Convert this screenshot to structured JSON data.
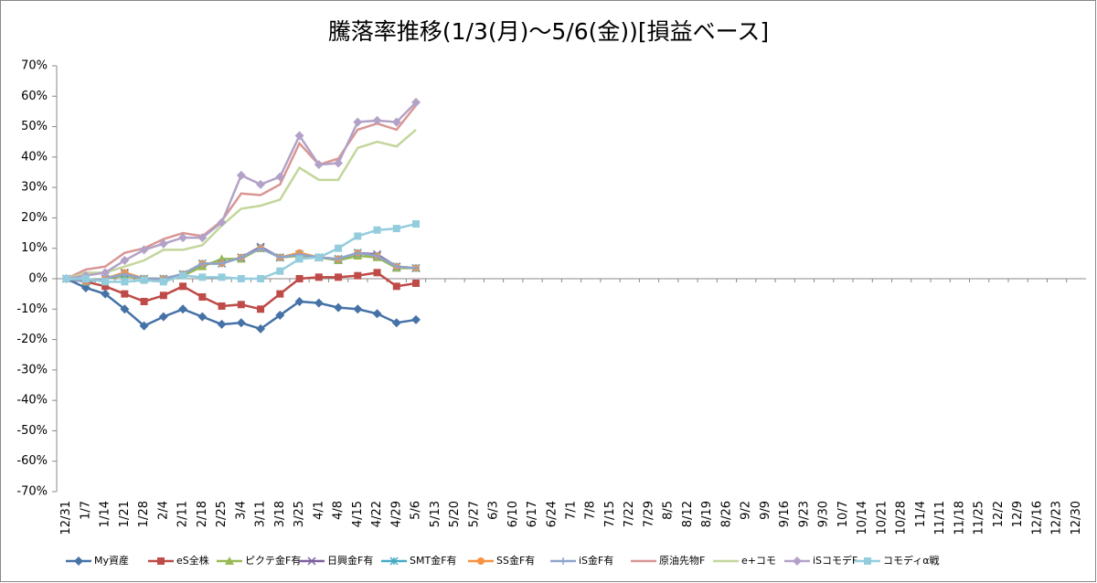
{
  "chart_data": {
    "type": "line",
    "title": "騰落率推移(1/3(月)～5/6(金))[損益ベース]",
    "categories": [
      "12/31",
      "1/7",
      "1/14",
      "1/21",
      "1/28",
      "2/4",
      "2/11",
      "2/18",
      "2/25",
      "3/4",
      "3/11",
      "3/18",
      "3/25",
      "4/1",
      "4/8",
      "4/15",
      "4/22",
      "4/29",
      "5/6",
      "5/13",
      "5/20",
      "5/27",
      "6/3",
      "6/10",
      "6/17",
      "6/24",
      "7/1",
      "7/8",
      "7/15",
      "7/22",
      "7/29",
      "8/5",
      "8/12",
      "8/19",
      "8/26",
      "9/2",
      "9/9",
      "9/16",
      "9/23",
      "9/30",
      "10/7",
      "10/14",
      "10/21",
      "10/28",
      "11/4",
      "11/11",
      "11/18",
      "11/25",
      "12/2",
      "12/9",
      "12/16",
      "12/23",
      "12/30"
    ],
    "ylim": [
      -70,
      70
    ],
    "yticks": [
      {
        "value": -70,
        "label": "-70%"
      },
      {
        "value": -60,
        "label": "-60%"
      },
      {
        "value": -50,
        "label": "-50%"
      },
      {
        "value": -40,
        "label": "-40%"
      },
      {
        "value": -30,
        "label": "-30%"
      },
      {
        "value": -20,
        "label": "-20%"
      },
      {
        "value": -10,
        "label": "-10%"
      },
      {
        "value": 0,
        "label": "0%"
      },
      {
        "value": 10,
        "label": "10%"
      },
      {
        "value": 20,
        "label": "20%"
      },
      {
        "value": 30,
        "label": "30%"
      },
      {
        "value": 40,
        "label": "40%"
      },
      {
        "value": 50,
        "label": "50%"
      },
      {
        "value": 60,
        "label": "60%"
      },
      {
        "value": 70,
        "label": "70%"
      }
    ],
    "grid": false,
    "legend": "bottom",
    "series": [
      {
        "name": "My資産",
        "color": "#4572a7",
        "marker": "diamond",
        "values": [
          0,
          -3,
          -5,
          -10,
          -15.5,
          -12.5,
          -10,
          -12.5,
          -15,
          -14.5,
          -16.5,
          -12,
          -7.5,
          -8,
          -9.5,
          -10,
          -11.5,
          -14.5,
          -13.5,
          null,
          null,
          null,
          null,
          null,
          null,
          null,
          null,
          null,
          null,
          null,
          null,
          null,
          null,
          null,
          null,
          null,
          null,
          null,
          null,
          null,
          null,
          null,
          null,
          null,
          null,
          null,
          null,
          null,
          null,
          null,
          null,
          null,
          null
        ]
      },
      {
        "name": "eS全株",
        "color": "#be4b48",
        "marker": "square",
        "values": [
          0,
          -1,
          -2.5,
          -5,
          -7.5,
          -5.5,
          -2.5,
          -6,
          -9,
          -8.5,
          -10,
          -5,
          0,
          0.5,
          0.5,
          1,
          2,
          -2.5,
          -1.5,
          null,
          null,
          null,
          null,
          null,
          null,
          null,
          null,
          null,
          null,
          null,
          null,
          null,
          null,
          null,
          null,
          null,
          null,
          null,
          null,
          null,
          null,
          null,
          null,
          null,
          null,
          null,
          null,
          null,
          null,
          null,
          null,
          null,
          null
        ]
      },
      {
        "name": "ピクテ金F有",
        "color": "#98b954",
        "marker": "triangle",
        "values": [
          0,
          -1,
          0,
          1,
          0,
          0,
          1,
          4,
          6.5,
          6.5,
          10,
          7,
          7.5,
          7,
          6,
          7.5,
          7,
          3.5,
          3.5,
          null,
          null,
          null,
          null,
          null,
          null,
          null,
          null,
          null,
          null,
          null,
          null,
          null,
          null,
          null,
          null,
          null,
          null,
          null,
          null,
          null,
          null,
          null,
          null,
          null,
          null,
          null,
          null,
          null,
          null,
          null,
          null,
          null,
          null
        ]
      },
      {
        "name": "日興金F有",
        "color": "#7d5fa0",
        "marker": "x",
        "values": [
          0,
          -1,
          0,
          2,
          0,
          0,
          1.5,
          5,
          5,
          7,
          10.5,
          7,
          8,
          7,
          6.5,
          8.5,
          8,
          4,
          3.5,
          null,
          null,
          null,
          null,
          null,
          null,
          null,
          null,
          null,
          null,
          null,
          null,
          null,
          null,
          null,
          null,
          null,
          null,
          null,
          null,
          null,
          null,
          null,
          null,
          null,
          null,
          null,
          null,
          null,
          null,
          null,
          null,
          null,
          null
        ]
      },
      {
        "name": "SMT金F有",
        "color": "#46aac5",
        "marker": "star",
        "values": [
          0,
          -1,
          0,
          1.5,
          0,
          0,
          1.5,
          5,
          5,
          7,
          10,
          7,
          8,
          7,
          6.5,
          8.5,
          7.5,
          4,
          3.5,
          null,
          null,
          null,
          null,
          null,
          null,
          null,
          null,
          null,
          null,
          null,
          null,
          null,
          null,
          null,
          null,
          null,
          null,
          null,
          null,
          null,
          null,
          null,
          null,
          null,
          null,
          null,
          null,
          null,
          null,
          null,
          null,
          null,
          null
        ]
      },
      {
        "name": "SS金F有",
        "color": "#f69240",
        "marker": "circle",
        "values": [
          0,
          -1,
          0,
          2,
          0,
          0,
          1.5,
          5,
          5,
          7,
          10,
          7,
          8.5,
          7,
          6.5,
          8.5,
          7.5,
          4,
          3.5,
          null,
          null,
          null,
          null,
          null,
          null,
          null,
          null,
          null,
          null,
          null,
          null,
          null,
          null,
          null,
          null,
          null,
          null,
          null,
          null,
          null,
          null,
          null,
          null,
          null,
          null,
          null,
          null,
          null,
          null,
          null,
          null,
          null,
          null
        ]
      },
      {
        "name": "iS金F有",
        "color": "#8ea5cb",
        "marker": "plus",
        "values": [
          0,
          -1,
          0,
          1.5,
          0,
          0,
          1.5,
          5,
          5,
          7,
          10,
          7,
          8,
          7,
          6.5,
          8.5,
          7.5,
          4,
          3.5,
          null,
          null,
          null,
          null,
          null,
          null,
          null,
          null,
          null,
          null,
          null,
          null,
          null,
          null,
          null,
          null,
          null,
          null,
          null,
          null,
          null,
          null,
          null,
          null,
          null,
          null,
          null,
          null,
          null,
          null,
          null,
          null,
          null,
          null
        ]
      },
      {
        "name": "原油先物F",
        "color": "#d99694",
        "marker": "none",
        "values": [
          0,
          3,
          4,
          8.5,
          10,
          13,
          15,
          14,
          19,
          28,
          27.5,
          31,
          44.5,
          37.5,
          39.5,
          49,
          51,
          49,
          57,
          null,
          null,
          null,
          null,
          null,
          null,
          null,
          null,
          null,
          null,
          null,
          null,
          null,
          null,
          null,
          null,
          null,
          null,
          null,
          null,
          null,
          null,
          null,
          null,
          null,
          null,
          null,
          null,
          null,
          null,
          null,
          null,
          null,
          null
        ]
      },
      {
        "name": "e+コモ",
        "color": "#c3d69b",
        "marker": "none",
        "values": [
          0,
          2,
          2,
          4,
          6,
          9.5,
          9.5,
          11,
          17.5,
          23,
          24,
          26,
          36.5,
          32.5,
          32.5,
          43,
          45,
          43.5,
          49,
          null,
          null,
          null,
          null,
          null,
          null,
          null,
          null,
          null,
          null,
          null,
          null,
          null,
          null,
          null,
          null,
          null,
          null,
          null,
          null,
          null,
          null,
          null,
          null,
          null,
          null,
          null,
          null,
          null,
          null,
          null,
          null,
          null,
          null
        ]
      },
      {
        "name": "iSコモデF",
        "color": "#b3a2c7",
        "marker": "diamond",
        "values": [
          0,
          1,
          2,
          6,
          9.5,
          11.5,
          13.5,
          13.5,
          18.5,
          34,
          31,
          33.5,
          47,
          37.5,
          38,
          51.5,
          52,
          51.5,
          58,
          null,
          null,
          null,
          null,
          null,
          null,
          null,
          null,
          null,
          null,
          null,
          null,
          null,
          null,
          null,
          null,
          null,
          null,
          null,
          null,
          null,
          null,
          null,
          null,
          null,
          null,
          null,
          null,
          null,
          null,
          null,
          null,
          null,
          null
        ]
      },
      {
        "name": "コモディα戦",
        "color": "#93cddd",
        "marker": "square",
        "values": [
          0,
          0,
          -1,
          -1,
          -0.5,
          -1,
          1,
          0.5,
          0.5,
          0,
          0,
          2.5,
          6.5,
          7,
          10,
          14,
          16,
          16.5,
          18,
          null,
          null,
          null,
          null,
          null,
          null,
          null,
          null,
          null,
          null,
          null,
          null,
          null,
          null,
          null,
          null,
          null,
          null,
          null,
          null,
          null,
          null,
          null,
          null,
          null,
          null,
          null,
          null,
          null,
          null,
          null,
          null,
          null,
          null
        ]
      }
    ]
  }
}
